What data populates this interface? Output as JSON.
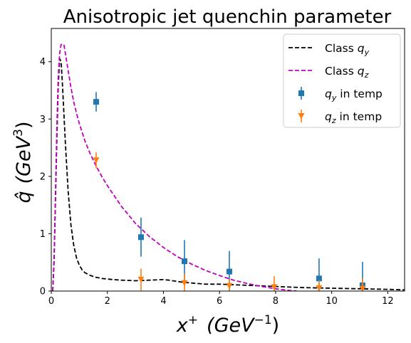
{
  "chart_data": {
    "type": "line",
    "title": "Anisotropic jet quenchin parameter",
    "xlabel": {
      "base": "x",
      "sup": "+",
      "unit": "(GeV",
      "unit_sup": "−1",
      "close": ")"
    },
    "ylabel": {
      "base": "q̂",
      "unit": "(GeV",
      "unit_sup": "3",
      "close": ")"
    },
    "xlim": [
      0,
      12.6
    ],
    "ylim": [
      0,
      4.58
    ],
    "x_ticks": [
      0,
      2,
      4,
      6,
      8,
      10,
      12
    ],
    "y_ticks": [
      0,
      1,
      2,
      3,
      4
    ],
    "x_tick_labels": [
      "0",
      "2",
      "4",
      "6",
      "8",
      "10",
      "12"
    ],
    "y_tick_labels": [
      "0",
      "1",
      "2",
      "3",
      "4"
    ],
    "grid": false,
    "legend_position": "upper right",
    "legend": [
      {
        "kind": "line",
        "base": "Class ",
        "math": "q",
        "sub": "y",
        "suffix": "",
        "color": "#000000"
      },
      {
        "kind": "line",
        "base": "Class ",
        "math": "q",
        "sub": "z",
        "suffix": "",
        "color": "#bf00bf"
      },
      {
        "kind": "marker",
        "marker": "square",
        "base": "",
        "math": "q",
        "sub": "y",
        "suffix": " in temp",
        "color": "#1f77b4"
      },
      {
        "kind": "marker",
        "marker": "triangle",
        "base": "",
        "math": "q",
        "sub": "z",
        "suffix": " in temp",
        "color": "#ff7f0e"
      }
    ],
    "series": [
      {
        "style": "dashed",
        "color": "#000000",
        "x": [
          0.05,
          0.1,
          0.15,
          0.2,
          0.25,
          0.3,
          0.35,
          0.4,
          0.5,
          0.6,
          0.7,
          0.8,
          0.9,
          1.0,
          1.1,
          1.2,
          1.4,
          1.6,
          1.8,
          2.0,
          2.2,
          2.5,
          3.0,
          3.5,
          4.0,
          4.2,
          4.6,
          5.0,
          5.5,
          6.0,
          6.5,
          7.0,
          7.5,
          8.0,
          9.0,
          10.0,
          11.0,
          12.0,
          12.6
        ],
        "y": [
          0.0,
          0.5,
          1.6,
          2.7,
          3.6,
          4.05,
          4.0,
          3.6,
          2.6,
          1.75,
          1.15,
          0.8,
          0.58,
          0.45,
          0.37,
          0.32,
          0.27,
          0.24,
          0.22,
          0.21,
          0.2,
          0.19,
          0.18,
          0.19,
          0.2,
          0.19,
          0.16,
          0.14,
          0.12,
          0.12,
          0.11,
          0.1,
          0.09,
          0.08,
          0.06,
          0.05,
          0.04,
          0.03,
          0.02
        ]
      },
      {
        "style": "dashed",
        "color": "#bf00bf",
        "x": [
          0.05,
          0.1,
          0.15,
          0.2,
          0.25,
          0.3,
          0.35,
          0.45,
          0.5,
          0.6,
          0.7,
          0.8,
          0.9,
          1.0,
          1.2,
          1.4,
          1.6,
          1.8,
          2.0,
          2.5,
          3.0,
          3.5,
          4.0,
          4.5,
          5.0,
          5.5,
          6.0,
          6.5,
          7.0,
          7.5,
          8.0,
          8.5,
          8.75
        ],
        "y": [
          0.0,
          0.55,
          1.7,
          2.9,
          3.75,
          4.15,
          4.3,
          4.3,
          4.15,
          3.85,
          3.55,
          3.3,
          3.1,
          2.92,
          2.62,
          2.38,
          2.18,
          2.0,
          1.84,
          1.48,
          1.18,
          0.95,
          0.76,
          0.6,
          0.47,
          0.36,
          0.27,
          0.19,
          0.13,
          0.08,
          0.04,
          0.01,
          0.0
        ]
      },
      {
        "style": "errorbar",
        "marker": "square",
        "color": "#1f77b4",
        "x": [
          1.6,
          3.2,
          4.75,
          6.35,
          9.55,
          11.1
        ],
        "y": [
          3.3,
          0.94,
          0.52,
          0.34,
          0.22,
          0.1
        ],
        "yerr": [
          0.17,
          0.34,
          0.37,
          0.36,
          0.35,
          0.41
        ]
      },
      {
        "style": "errorbar",
        "marker": "triangle",
        "color": "#ff7f0e",
        "x": [
          1.6,
          3.2,
          4.75,
          6.35,
          7.95,
          9.55,
          11.1
        ],
        "y": [
          2.28,
          0.2,
          0.14,
          0.09,
          0.07,
          0.05,
          0.04
        ],
        "yerr": [
          0.14,
          0.19,
          0.16,
          0.12,
          0.19,
          0.14,
          0.18
        ]
      }
    ]
  }
}
